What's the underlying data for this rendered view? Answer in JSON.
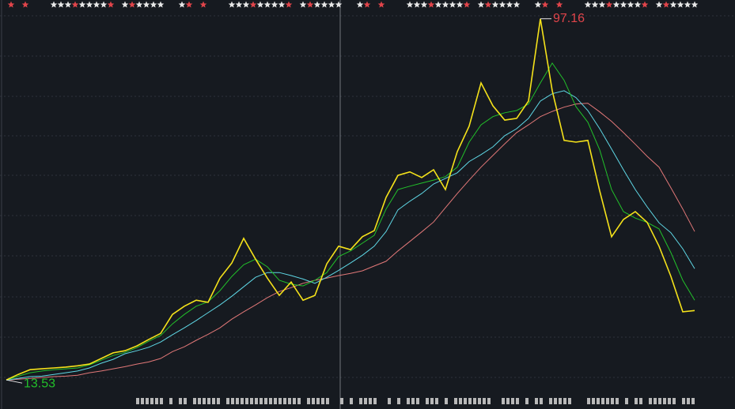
{
  "chart_data": {
    "type": "line",
    "categories": [
      null,
      null,
      null,
      null,
      null,
      null,
      null,
      null,
      null,
      null,
      null,
      null,
      null,
      null,
      null,
      null,
      null,
      null,
      null,
      null,
      null,
      null,
      null,
      null,
      null,
      null,
      null,
      null,
      null,
      null,
      null,
      null,
      null,
      null,
      null,
      null,
      null,
      null,
      null,
      null,
      null,
      null,
      null,
      null,
      null,
      null,
      null,
      null,
      null,
      null,
      null,
      null,
      null,
      null,
      null,
      null,
      null,
      null,
      null
    ],
    "ylim": [
      6.8,
      101.5
    ],
    "series": [
      {
        "color": "#f5e21a",
        "values": [
          13.53,
          14.8,
          15.9,
          16.1,
          16.3,
          16.5,
          16.8,
          17.2,
          18.5,
          19.8,
          20.3,
          21.4,
          22.9,
          24.3,
          28.7,
          30.6,
          32.0,
          31.5,
          37.1,
          40.6,
          46.3,
          41.5,
          37.1,
          33.1,
          36.2,
          32.0,
          33.1,
          40.4,
          44.5,
          43.7,
          46.7,
          48.1,
          55.8,
          60.9,
          61.7,
          60.4,
          62.2,
          57.6,
          66.4,
          72.3,
          82.3,
          77.0,
          73.7,
          74.1,
          78.1,
          97.16,
          80.5,
          69.0,
          68.6,
          69.0,
          57.3,
          46.7,
          50.7,
          52.5,
          50.0,
          44.5,
          37.5,
          29.3,
          29.6
        ]
      },
      {
        "color": "#22c02a",
        "values": [
          13.5,
          14.4,
          15.2,
          15.6,
          15.9,
          16.1,
          16.3,
          17.0,
          18.1,
          19.2,
          19.9,
          21.0,
          22.5,
          23.8,
          26.5,
          28.7,
          30.6,
          31.6,
          34.2,
          37.5,
          40.2,
          41.5,
          39.7,
          36.6,
          35.7,
          35.3,
          36.6,
          38.4,
          42.1,
          43.4,
          45.2,
          47.0,
          53.1,
          57.6,
          58.4,
          59.1,
          59.8,
          60.6,
          62.8,
          68.6,
          72.6,
          74.5,
          75.4,
          75.9,
          77.4,
          82.3,
          86.9,
          82.9,
          76.8,
          73.2,
          66.8,
          57.6,
          52.5,
          51.0,
          50.0,
          48.5,
          43.0,
          36.6,
          32.0
        ]
      },
      {
        "color": "#5fd8e6",
        "values": [
          13.5,
          13.9,
          14.3,
          14.4,
          14.8,
          15.2,
          15.6,
          16.3,
          17.4,
          18.3,
          19.6,
          20.3,
          21.1,
          22.3,
          24.0,
          25.6,
          27.3,
          29.1,
          30.9,
          32.9,
          35.1,
          37.3,
          38.4,
          38.4,
          37.7,
          36.9,
          35.9,
          37.3,
          38.9,
          40.6,
          42.4,
          44.5,
          47.9,
          52.9,
          54.9,
          56.7,
          58.9,
          60.2,
          61.5,
          64.1,
          65.7,
          67.5,
          70.1,
          71.7,
          74.1,
          78.1,
          79.8,
          80.5,
          78.9,
          75.9,
          71.7,
          67.0,
          62.2,
          57.6,
          53.6,
          49.9,
          47.6,
          43.9,
          39.3
        ]
      },
      {
        "color": "#e27878",
        "values": [
          13.5,
          13.7,
          13.9,
          14.1,
          14.3,
          14.4,
          14.6,
          15.2,
          15.6,
          16.1,
          16.6,
          17.2,
          17.7,
          18.5,
          20.1,
          21.2,
          22.7,
          24.1,
          25.6,
          27.6,
          29.3,
          30.9,
          32.6,
          34.0,
          34.9,
          35.9,
          36.6,
          37.1,
          37.7,
          38.2,
          38.8,
          39.9,
          41.0,
          43.4,
          45.6,
          47.8,
          50.1,
          53.4,
          56.7,
          59.8,
          62.8,
          65.5,
          68.2,
          70.8,
          72.6,
          74.5,
          75.7,
          76.7,
          77.4,
          77.6,
          75.6,
          73.4,
          70.8,
          68.1,
          65.3,
          62.8,
          58.0,
          53.1,
          47.9
        ]
      }
    ]
  }
}
